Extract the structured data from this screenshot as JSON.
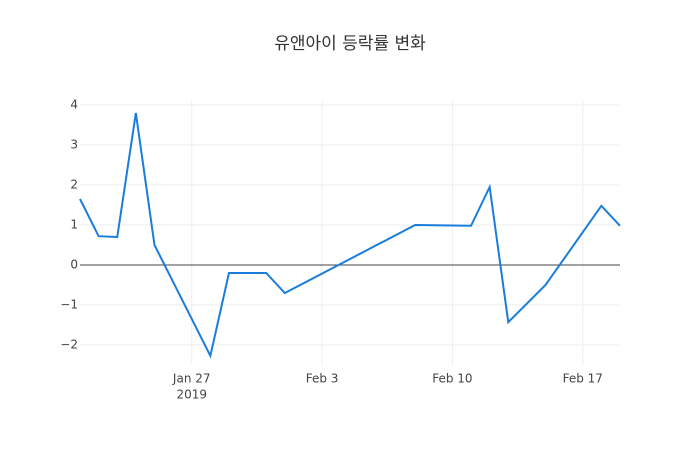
{
  "chart_data": {
    "type": "line",
    "title": "유앤아이 등락률 변화",
    "x": [
      "2019-01-21",
      "2019-01-22",
      "2019-01-23",
      "2019-01-24",
      "2019-01-25",
      "2019-01-28",
      "2019-01-29",
      "2019-01-30",
      "2019-01-31",
      "2019-02-01",
      "2019-02-08",
      "2019-02-11",
      "2019-02-12",
      "2019-02-13",
      "2019-02-15",
      "2019-02-18",
      "2019-02-19"
    ],
    "series": [
      {
        "color": "#1a7ddb",
        "values": [
          1.65,
          0.72,
          0.7,
          3.8,
          0.5,
          -2.27,
          -0.2,
          -0.2,
          -0.2,
          -0.7,
          1.0,
          0.98,
          1.95,
          -1.43,
          -0.5,
          1.48,
          0.98
        ]
      }
    ],
    "xlim": [
      "2019-01-21",
      "2019-02-19"
    ],
    "xticks": [
      {
        "value": "2019-01-27",
        "label": "Jan 27"
      },
      {
        "value": "2019-02-03",
        "label": "Feb 3"
      },
      {
        "value": "2019-02-10",
        "label": "Feb 10"
      },
      {
        "value": "2019-02-17",
        "label": "Feb 17"
      }
    ],
    "xtick_year": "2019",
    "ylim": [
      -2.5,
      4.125
    ],
    "yticks": [
      {
        "value": -2,
        "label": "−2"
      },
      {
        "value": -1,
        "label": "−1"
      },
      0,
      1,
      2,
      3,
      4
    ],
    "grid": true
  }
}
